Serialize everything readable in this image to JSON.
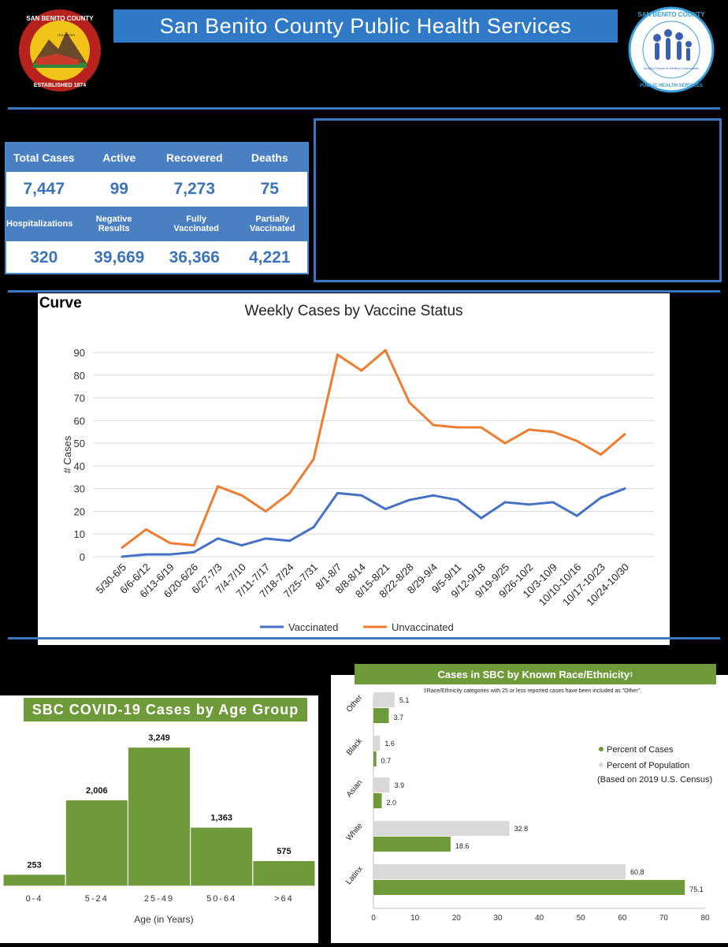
{
  "header": {
    "title": "San Benito County Public Health Services",
    "seal_text": [
      "SAN BENITO COUNTY",
      "ESTABLISHED 1874",
      "HOLLISTER"
    ],
    "logo_text": [
      "SAN BENITO COUNTY",
      "PUBLIC HEALTH SERVICES",
      "Healthy People in Healthy Communities"
    ]
  },
  "stats": {
    "row1_labels": [
      "Total Cases",
      "Active",
      "Recovered",
      "Deaths"
    ],
    "row1_values": [
      "7,447",
      "99",
      "7,273",
      "75"
    ],
    "row2_labels": [
      "Hospitalizations",
      "Negative Results",
      "Fully Vaccinated",
      "Partially Vaccinated"
    ],
    "row2_values": [
      "320",
      "39,669",
      "36,366",
      "4,221"
    ]
  },
  "epi_label": "i. Curve",
  "chart_data": [
    {
      "type": "line",
      "title": "Weekly Cases by Vaccine Status",
      "ylabel": "# Cases",
      "xlabel": "",
      "ylim": [
        0,
        90
      ],
      "yticks": [
        0,
        10,
        20,
        30,
        40,
        50,
        60,
        70,
        80,
        90
      ],
      "grid": true,
      "legend": "bottom",
      "categories": [
        "5/30-6/5",
        "6/6-6/12",
        "6/13-6/19",
        "6/20-6/26",
        "6/27-7/3",
        "7/4-7/10",
        "7/11-7/17",
        "7/18-7/24",
        "7/25-7/31",
        "8/1-8/7",
        "8/8-8/14",
        "8/15-8/21",
        "8/22-8/28",
        "8/29-9/4",
        "9/5-9/11",
        "9/12-9/18",
        "9/19-9/25",
        "9/26-10/2",
        "10/3-10/9",
        "10/10-10/16",
        "10/17-10/23",
        "10/24-10/30"
      ],
      "series": [
        {
          "name": "Vaccinated",
          "color": "#4472c4",
          "values": [
            0,
            1,
            1,
            2,
            8,
            5,
            8,
            7,
            13,
            28,
            27,
            21,
            25,
            27,
            25,
            17,
            24,
            23,
            24,
            18,
            26,
            30
          ]
        },
        {
          "name": "Unvaccinated",
          "color": "#ed7d31",
          "values": [
            4,
            12,
            6,
            5,
            31,
            27,
            20,
            28,
            43,
            89,
            82,
            91,
            68,
            58,
            57,
            57,
            50,
            56,
            55,
            51,
            45,
            54
          ]
        }
      ]
    },
    {
      "type": "bar",
      "title": "SBC COVID-19 Cases by Age Group",
      "xlabel": "Age (in Years)",
      "ylabel": "",
      "categories": [
        "0-4",
        "5-24",
        "25-49",
        "50-64",
        ">64"
      ],
      "values": [
        253,
        2006,
        3249,
        1363,
        575
      ],
      "value_labels": [
        "253",
        "2,006",
        "3,249",
        "1,363",
        "575"
      ],
      "ylim": [
        0,
        3400
      ],
      "color": "#6e9a3a"
    },
    {
      "type": "bar",
      "orientation": "horizontal",
      "title": "Cases in SBC by Known Race/Ethnicity",
      "title_marker": "‡",
      "footnote": "‡Race/Ethnicity categories with 25 or less reported cases have been included as \"Other\".",
      "categories": [
        "Other",
        "Black",
        "Asian",
        "White",
        "Latinx"
      ],
      "xlim": [
        0,
        80
      ],
      "xticks": [
        0,
        10,
        20,
        30,
        40,
        50,
        60,
        70,
        80
      ],
      "series": [
        {
          "name": "Percent of Cases",
          "color": "#6e9a3a",
          "values": [
            3.7,
            0.7,
            2.0,
            18.6,
            75.1
          ]
        },
        {
          "name": "Percent of Population",
          "color": "#d9d9d9",
          "values": [
            5.1,
            1.6,
            3.9,
            32.8,
            60.8
          ]
        }
      ],
      "legend_note": "(Based on 2019 U.S. Census)"
    }
  ]
}
